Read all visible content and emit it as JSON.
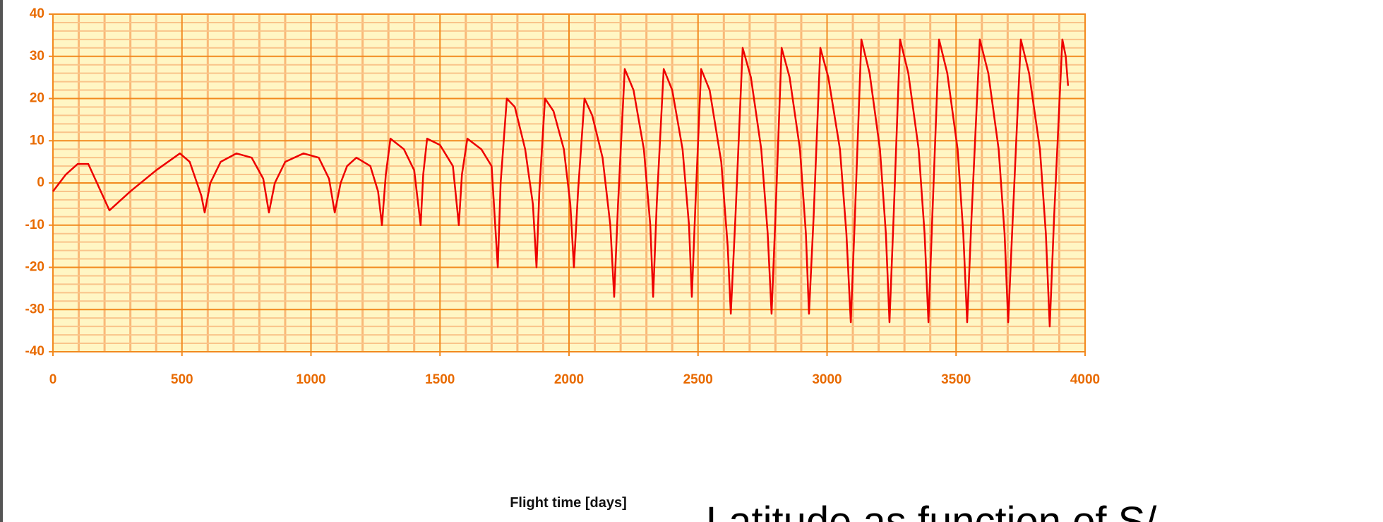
{
  "chart_data": {
    "type": "line",
    "xlabel": "Flight time [days]",
    "caption": "Latitude as function of S/",
    "color": "#ee0000",
    "grid": true,
    "xlim": [
      0,
      4000
    ],
    "xticks": [
      0,
      500,
      1000,
      1500,
      2000,
      2500,
      3000,
      3500,
      4000
    ],
    "ylim": [
      -40,
      40
    ],
    "yticks": [
      -40,
      -30,
      -20,
      -10,
      0,
      10,
      20,
      30,
      40
    ],
    "x": [
      0,
      50,
      96,
      137,
      219,
      300,
      400,
      492,
      530,
      575,
      588,
      610,
      650,
      711,
      770,
      815,
      837,
      860,
      900,
      971,
      1030,
      1070,
      1092,
      1115,
      1140,
      1176,
      1230,
      1260,
      1275,
      1290,
      1308,
      1360,
      1400,
      1425,
      1435,
      1450,
      1500,
      1550,
      1573,
      1585,
      1606,
      1660,
      1700,
      1724,
      1735,
      1759,
      1790,
      1830,
      1860,
      1874,
      1885,
      1907,
      1940,
      1980,
      2005,
      2019,
      2035,
      2060,
      2090,
      2130,
      2160,
      2175,
      2190,
      2216,
      2250,
      2290,
      2315,
      2326,
      2340,
      2367,
      2400,
      2440,
      2465,
      2476,
      2490,
      2512,
      2545,
      2590,
      2615,
      2627,
      2645,
      2673,
      2705,
      2745,
      2770,
      2785,
      2800,
      2824,
      2855,
      2895,
      2918,
      2930,
      2948,
      2974,
      3005,
      3050,
      3075,
      3092,
      3108,
      3133,
      3165,
      3205,
      3228,
      3242,
      3258,
      3283,
      3315,
      3355,
      3378,
      3393,
      3408,
      3434,
      3466,
      3506,
      3528,
      3543,
      3560,
      3592,
      3625,
      3665,
      3688,
      3702,
      3720,
      3751,
      3783,
      3825,
      3848,
      3863,
      3880,
      3912,
      3925,
      3934
    ],
    "values": [
      -2,
      2,
      4.5,
      4.5,
      -6.5,
      -2,
      3,
      7,
      5,
      -3,
      -7,
      0,
      5,
      7,
      6,
      1,
      -7,
      0,
      5,
      7,
      6,
      1,
      -7,
      0,
      4,
      6,
      4,
      -2,
      -10,
      2,
      10.5,
      8,
      3,
      -10,
      2,
      10.5,
      9,
      4,
      -10,
      2,
      10.5,
      8,
      4,
      -20,
      0,
      20,
      18,
      8,
      -5,
      -20,
      -2,
      20,
      17,
      8,
      -5,
      -20,
      -2,
      20,
      16,
      6,
      -10,
      -27,
      -5,
      27,
      22,
      8,
      -10,
      -27,
      -5,
      27,
      22,
      8,
      -10,
      -27,
      -5,
      27,
      22,
      5,
      -15,
      -31,
      -8,
      32,
      25,
      8,
      -12,
      -31,
      -8,
      32,
      25,
      8,
      -12,
      -31,
      -8,
      32,
      25,
      8,
      -12,
      -33,
      -8,
      34,
      26,
      8,
      -12,
      -33,
      -8,
      34,
      26,
      8,
      -12,
      -33,
      -8,
      34,
      26,
      8,
      -12,
      -33,
      -8,
      34,
      26,
      8,
      -12,
      -33,
      -8,
      34,
      26,
      8,
      -12,
      -34,
      -8,
      34,
      30,
      23
    ]
  }
}
